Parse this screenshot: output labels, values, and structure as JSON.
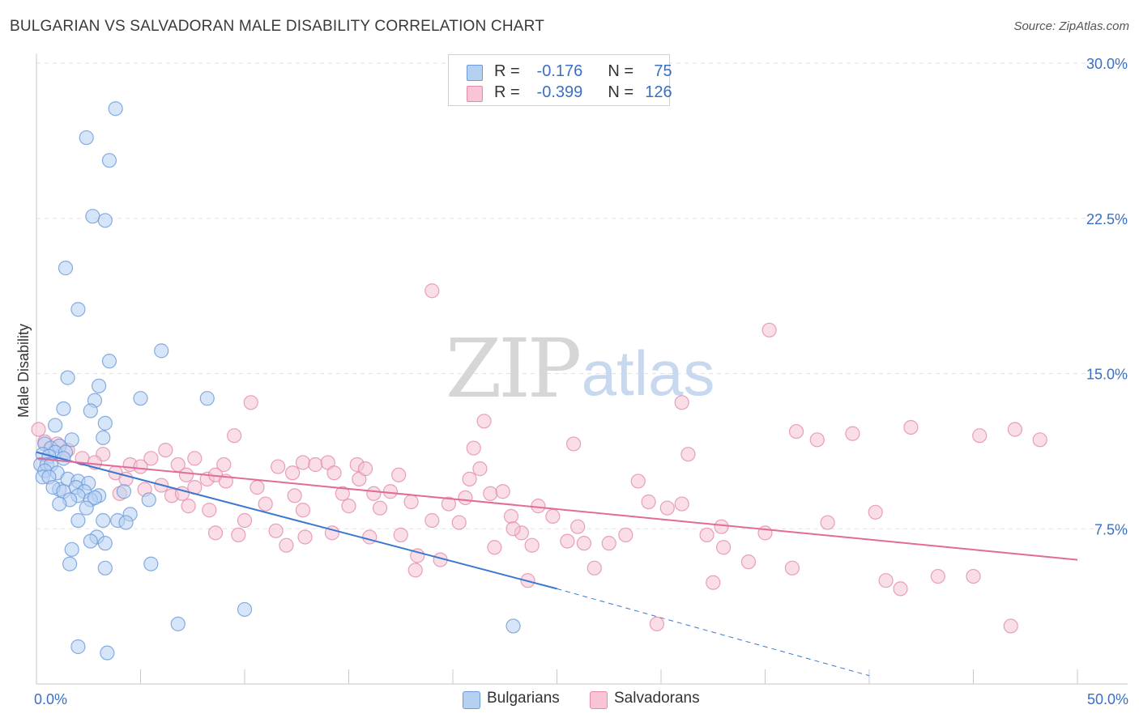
{
  "title": "BULGARIAN VS SALVADORAN MALE DISABILITY CORRELATION CHART",
  "source": "Source: ZipAtlas.com",
  "watermark": {
    "zip": "ZIP",
    "atlas": "atlas"
  },
  "legend": {
    "r_label": "R =",
    "n_label": "N =",
    "rows": [
      {
        "r": "-0.176",
        "n": "75",
        "color": "#a8c8f0",
        "border": "#6a9ad8"
      },
      {
        "r": "-0.399",
        "n": "126",
        "color": "#f8bcd0",
        "border": "#e48aaa"
      }
    ]
  },
  "colors": {
    "blue": "#3a78d0",
    "blue_fill": "#b6d0f2",
    "pink": "#e26b98",
    "pink_fill": "#f6c2d4",
    "axis_label": "#3a6fc4"
  },
  "chart_data": {
    "type": "scatter",
    "ylabel": "Male Disability",
    "xlim": [
      0,
      50
    ],
    "ylim": [
      0,
      30
    ],
    "x_tick_labels": [
      {
        "v": 0,
        "label": "0.0%"
      },
      {
        "v": 50,
        "label": "50.0%"
      }
    ],
    "y_tick_labels": [
      {
        "v": 7.5,
        "label": "7.5%"
      },
      {
        "v": 15,
        "label": "15.0%"
      },
      {
        "v": 22.5,
        "label": "22.5%"
      },
      {
        "v": 30,
        "label": "30.0%"
      }
    ],
    "grid": true,
    "legend_position": "bottom",
    "series": [
      {
        "name": "Bulgarians",
        "color": "#3a78d0",
        "trend": {
          "x0": 0,
          "y0": 11.2,
          "x1": 25,
          "y1": 4.6,
          "dash_to_x": 40,
          "dash_to_y": 0.4
        },
        "points": [
          [
            3.8,
            27.8
          ],
          [
            2.4,
            26.4
          ],
          [
            3.5,
            25.3
          ],
          [
            2.7,
            22.6
          ],
          [
            3.3,
            22.4
          ],
          [
            1.4,
            20.1
          ],
          [
            2.0,
            18.1
          ],
          [
            3.5,
            15.6
          ],
          [
            6.0,
            16.1
          ],
          [
            1.5,
            14.8
          ],
          [
            3.0,
            14.4
          ],
          [
            5.0,
            13.8
          ],
          [
            8.2,
            13.8
          ],
          [
            2.8,
            13.7
          ],
          [
            1.3,
            13.3
          ],
          [
            2.6,
            13.2
          ],
          [
            3.3,
            12.6
          ],
          [
            0.9,
            12.5
          ],
          [
            0.4,
            11.6
          ],
          [
            1.7,
            11.8
          ],
          [
            3.2,
            11.9
          ],
          [
            0.7,
            11.4
          ],
          [
            1.1,
            11.5
          ],
          [
            0.9,
            11.2
          ],
          [
            1.4,
            11.2
          ],
          [
            0.3,
            11.1
          ],
          [
            0.6,
            11.0
          ],
          [
            1.3,
            10.9
          ],
          [
            0.2,
            10.6
          ],
          [
            0.5,
            10.6
          ],
          [
            0.7,
            10.6
          ],
          [
            0.4,
            10.3
          ],
          [
            1.0,
            10.2
          ],
          [
            0.3,
            10.0
          ],
          [
            0.6,
            10.0
          ],
          [
            1.5,
            9.9
          ],
          [
            2.0,
            9.8
          ],
          [
            2.5,
            9.7
          ],
          [
            1.9,
            9.5
          ],
          [
            2.3,
            9.3
          ],
          [
            1.1,
            9.4
          ],
          [
            0.8,
            9.5
          ],
          [
            1.3,
            9.3
          ],
          [
            2.0,
            9.1
          ],
          [
            3.0,
            9.1
          ],
          [
            4.2,
            9.3
          ],
          [
            2.6,
            8.9
          ],
          [
            1.6,
            8.9
          ],
          [
            2.8,
            9.0
          ],
          [
            1.1,
            8.7
          ],
          [
            2.4,
            8.5
          ],
          [
            5.4,
            8.9
          ],
          [
            4.5,
            8.2
          ],
          [
            2.0,
            7.9
          ],
          [
            3.2,
            7.9
          ],
          [
            3.9,
            7.9
          ],
          [
            4.3,
            7.8
          ],
          [
            2.9,
            7.1
          ],
          [
            2.6,
            6.9
          ],
          [
            3.3,
            6.8
          ],
          [
            1.7,
            6.5
          ],
          [
            1.6,
            5.8
          ],
          [
            3.3,
            5.6
          ],
          [
            5.5,
            5.8
          ],
          [
            10.0,
            3.6
          ],
          [
            6.8,
            2.9
          ],
          [
            22.9,
            2.8
          ],
          [
            2.0,
            1.8
          ],
          [
            3.4,
            1.5
          ]
        ]
      },
      {
        "name": "Salvadorans",
        "color": "#e26b98",
        "trend": {
          "x0": 0,
          "y0": 10.9,
          "x1": 50,
          "y1": 6.0
        },
        "points": [
          [
            0.1,
            12.3
          ],
          [
            0.4,
            11.7
          ],
          [
            1.0,
            11.6
          ],
          [
            1.5,
            11.3
          ],
          [
            2.2,
            10.9
          ],
          [
            3.2,
            11.1
          ],
          [
            2.8,
            10.7
          ],
          [
            4.5,
            10.6
          ],
          [
            3.8,
            10.2
          ],
          [
            5.5,
            10.9
          ],
          [
            5.0,
            10.5
          ],
          [
            6.2,
            11.3
          ],
          [
            7.6,
            10.9
          ],
          [
            6.8,
            10.6
          ],
          [
            4.3,
            9.9
          ],
          [
            5.2,
            9.4
          ],
          [
            4.0,
            9.2
          ],
          [
            6.0,
            9.6
          ],
          [
            7.2,
            10.1
          ],
          [
            6.5,
            9.1
          ],
          [
            7.0,
            9.2
          ],
          [
            7.6,
            9.5
          ],
          [
            8.2,
            9.9
          ],
          [
            8.6,
            10.1
          ],
          [
            9.0,
            10.6
          ],
          [
            9.5,
            12.0
          ],
          [
            10.3,
            13.6
          ],
          [
            9.1,
            9.8
          ],
          [
            10.6,
            9.5
          ],
          [
            11.0,
            8.7
          ],
          [
            11.6,
            10.5
          ],
          [
            12.3,
            10.2
          ],
          [
            12.8,
            10.7
          ],
          [
            12.4,
            9.1
          ],
          [
            12.8,
            8.4
          ],
          [
            12.9,
            7.1
          ],
          [
            13.4,
            10.6
          ],
          [
            14.0,
            10.7
          ],
          [
            14.3,
            10.2
          ],
          [
            14.7,
            9.2
          ],
          [
            14.2,
            7.3
          ],
          [
            15.0,
            8.6
          ],
          [
            15.5,
            9.9
          ],
          [
            15.4,
            10.6
          ],
          [
            15.8,
            10.4
          ],
          [
            16.2,
            9.2
          ],
          [
            16.0,
            7.1
          ],
          [
            16.5,
            8.5
          ],
          [
            17.0,
            9.3
          ],
          [
            17.4,
            10.1
          ],
          [
            17.5,
            7.2
          ],
          [
            18.0,
            8.8
          ],
          [
            18.3,
            6.2
          ],
          [
            18.2,
            5.5
          ],
          [
            19.0,
            7.9
          ],
          [
            19.4,
            6.0
          ],
          [
            19.8,
            8.7
          ],
          [
            20.3,
            7.8
          ],
          [
            20.6,
            9.0
          ],
          [
            21.3,
            10.4
          ],
          [
            21.5,
            12.7
          ],
          [
            21.0,
            11.4
          ],
          [
            21.8,
            9.2
          ],
          [
            22.0,
            6.6
          ],
          [
            22.4,
            9.3
          ],
          [
            22.8,
            8.1
          ],
          [
            23.3,
            7.3
          ],
          [
            23.8,
            6.7
          ],
          [
            23.6,
            5.0
          ],
          [
            24.1,
            8.6
          ],
          [
            24.8,
            8.1
          ],
          [
            25.5,
            6.9
          ],
          [
            26.0,
            7.6
          ],
          [
            26.3,
            6.8
          ],
          [
            26.8,
            5.6
          ],
          [
            25.8,
            11.6
          ],
          [
            27.5,
            6.8
          ],
          [
            28.3,
            7.2
          ],
          [
            28.9,
            9.8
          ],
          [
            29.4,
            8.8
          ],
          [
            29.8,
            2.9
          ],
          [
            30.3,
            8.5
          ],
          [
            31.0,
            8.7
          ],
          [
            31.0,
            13.6
          ],
          [
            31.3,
            11.1
          ],
          [
            32.2,
            7.2
          ],
          [
            32.5,
            4.9
          ],
          [
            32.9,
            7.6
          ],
          [
            33.0,
            6.6
          ],
          [
            34.2,
            5.9
          ],
          [
            35.0,
            7.3
          ],
          [
            35.2,
            17.1
          ],
          [
            36.3,
            5.6
          ],
          [
            36.5,
            12.2
          ],
          [
            37.5,
            11.8
          ],
          [
            38.0,
            7.8
          ],
          [
            39.2,
            12.1
          ],
          [
            40.3,
            8.3
          ],
          [
            40.8,
            5.0
          ],
          [
            41.5,
            4.6
          ],
          [
            42.0,
            12.4
          ],
          [
            43.3,
            5.2
          ],
          [
            45.0,
            5.2
          ],
          [
            45.3,
            12.0
          ],
          [
            46.8,
            2.8
          ],
          [
            47.0,
            12.3
          ],
          [
            48.2,
            11.8
          ],
          [
            19.0,
            19.0
          ],
          [
            10.0,
            7.9
          ],
          [
            11.5,
            7.4
          ],
          [
            12.0,
            6.7
          ],
          [
            8.3,
            8.4
          ],
          [
            7.3,
            8.6
          ],
          [
            9.7,
            7.2
          ],
          [
            8.6,
            7.3
          ],
          [
            20.8,
            9.9
          ],
          [
            22.9,
            7.5
          ]
        ]
      }
    ]
  }
}
